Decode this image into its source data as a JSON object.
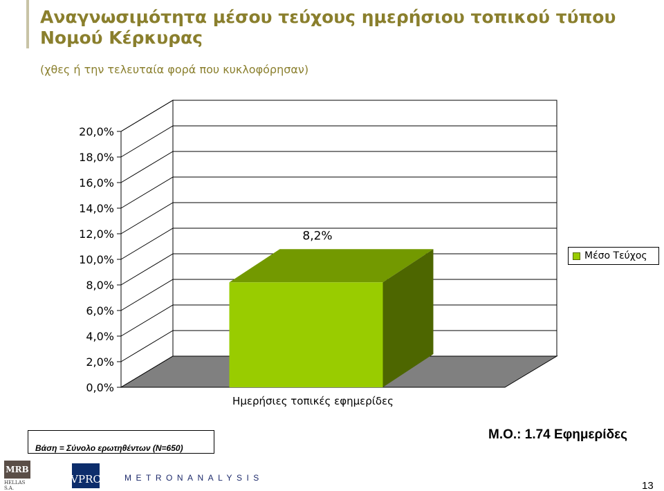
{
  "slide": {
    "title": "Αναγνωσιμότητα μέσου τεύχους ημερήσιου τοπικού τύπου Νομού Κέρκυρας",
    "subtitle": "(χθες ή την τελευταία φορά που κυκλοφόρησαν)",
    "base_note": "Βάση = Σύνολο ερωτηθέντων (Ν=650)",
    "mean_note": "Μ.Ο.: 1.74 Εφημερίδες",
    "page_number": "13"
  },
  "logos": {
    "mrb": "MRB",
    "mrb_sub": "HELLAS S.A.",
    "vprc": "VPRC",
    "metron": "METRONANALYSIS"
  },
  "chart_data": {
    "type": "bar",
    "title": "",
    "categories": [
      "Ημερήσιες τοπικές εφημερίδες"
    ],
    "series": [
      {
        "name": "Μέσο Τεύχος",
        "values": [
          8.2
        ],
        "data_labels": [
          "8,2%"
        ]
      }
    ],
    "ylim": [
      0,
      20
    ],
    "yticks": [
      {
        "value": 0,
        "label": "0,0%"
      },
      {
        "value": 2,
        "label": "2,0%"
      },
      {
        "value": 4,
        "label": "4,0%"
      },
      {
        "value": 6,
        "label": "6,0%"
      },
      {
        "value": 8,
        "label": "8,0%"
      },
      {
        "value": 10,
        "label": "10,0%"
      },
      {
        "value": 12,
        "label": "12,0%"
      },
      {
        "value": 14,
        "label": "14,0%"
      },
      {
        "value": 16,
        "label": "16,0%"
      },
      {
        "value": 18,
        "label": "18,0%"
      },
      {
        "value": 20,
        "label": "20,0%"
      }
    ],
    "grid": true,
    "three_d": true,
    "legend_position": "right",
    "colors": {
      "bar_front": "#99cc00",
      "bar_top": "#739900",
      "bar_side": "#4d6600",
      "floor": "#808080"
    }
  }
}
